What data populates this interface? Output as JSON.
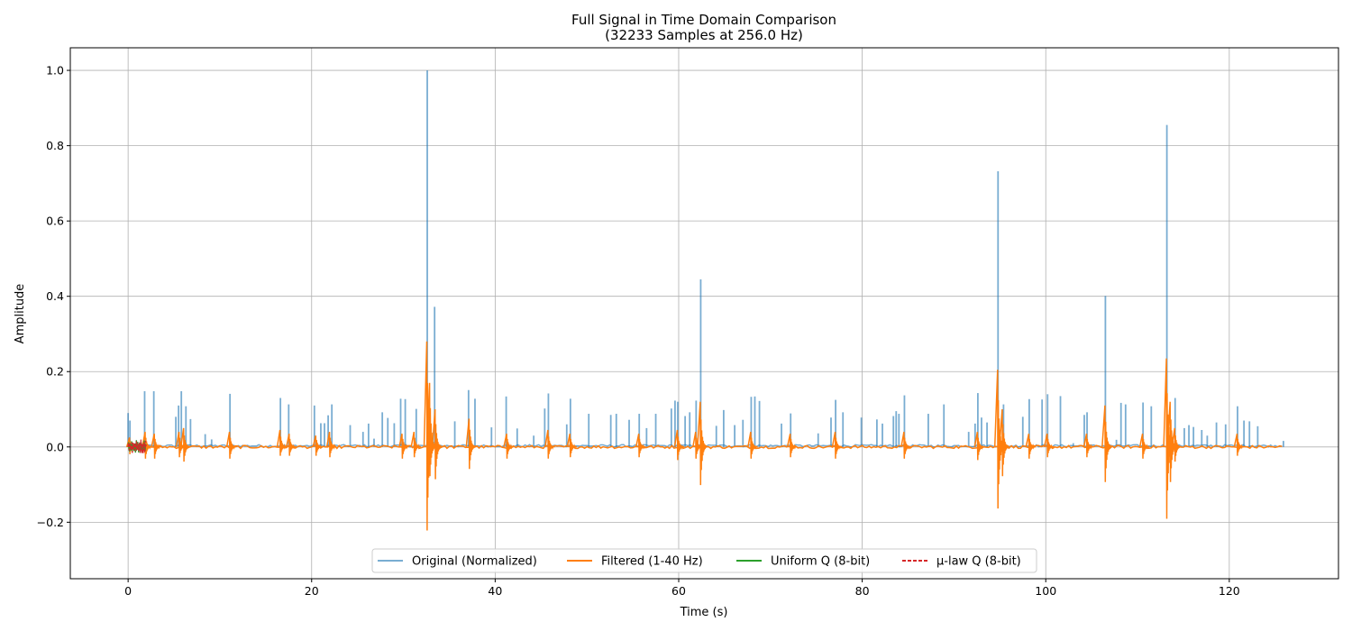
{
  "chart_data": {
    "type": "line",
    "title": "Full Signal in Time Domain Comparison",
    "subtitle": "(32233 Samples at 256.0 Hz)",
    "xlabel": "Time (s)",
    "ylabel": "Amplitude",
    "xlim": [
      -6.3,
      131.9
    ],
    "ylim": [
      -0.35,
      1.06
    ],
    "xticks": [
      0,
      20,
      40,
      60,
      80,
      100,
      120
    ],
    "xtick_labels": [
      "0",
      "20",
      "40",
      "60",
      "80",
      "100",
      "120"
    ],
    "yticks": [
      -0.2,
      0.0,
      0.2,
      0.4,
      0.6,
      0.8,
      1.0
    ],
    "ytick_labels": [
      "−0.2",
      "0.0",
      "0.2",
      "0.4",
      "0.6",
      "0.8",
      "1.0"
    ],
    "grid": true,
    "legend_position": "bottom-center",
    "duration_s": 125.9,
    "series": [
      {
        "name": "Original (Normalized)",
        "color": "#1f77b4",
        "style": "solid",
        "opacity": 0.6,
        "baseline": 0.0,
        "spikes": [
          [
            0.0,
            0.09
          ],
          [
            0.2,
            0.07
          ],
          [
            1.8,
            0.148
          ],
          [
            2.8,
            0.148
          ],
          [
            5.2,
            0.08
          ],
          [
            5.5,
            0.11
          ],
          [
            5.8,
            0.148
          ],
          [
            6.3,
            0.108
          ],
          [
            6.8,
            0.074
          ],
          [
            8.4,
            0.034
          ],
          [
            9.1,
            0.02
          ],
          [
            11.1,
            0.141
          ],
          [
            16.6,
            0.13
          ],
          [
            17.5,
            0.113
          ],
          [
            20.3,
            0.11
          ],
          [
            21.0,
            0.063
          ],
          [
            21.4,
            0.063
          ],
          [
            21.8,
            0.084
          ],
          [
            22.2,
            0.113
          ],
          [
            24.2,
            0.058
          ],
          [
            25.6,
            0.04
          ],
          [
            26.2,
            0.062
          ],
          [
            26.8,
            0.022
          ],
          [
            27.7,
            0.092
          ],
          [
            28.3,
            0.077
          ],
          [
            29.0,
            0.063
          ],
          [
            29.7,
            0.128
          ],
          [
            30.2,
            0.127
          ],
          [
            31.4,
            0.101
          ],
          [
            32.6,
            1.0
          ],
          [
            33.4,
            0.372
          ],
          [
            35.6,
            0.068
          ],
          [
            37.1,
            0.151
          ],
          [
            37.8,
            0.128
          ],
          [
            39.6,
            0.052
          ],
          [
            41.2,
            0.134
          ],
          [
            42.4,
            0.049
          ],
          [
            44.2,
            0.03
          ],
          [
            45.4,
            0.102
          ],
          [
            45.8,
            0.142
          ],
          [
            47.8,
            0.06
          ],
          [
            48.2,
            0.128
          ],
          [
            50.2,
            0.088
          ],
          [
            52.6,
            0.085
          ],
          [
            53.2,
            0.088
          ],
          [
            54.6,
            0.072
          ],
          [
            55.7,
            0.088
          ],
          [
            56.5,
            0.05
          ],
          [
            57.5,
            0.088
          ],
          [
            59.2,
            0.102
          ],
          [
            59.6,
            0.123
          ],
          [
            59.9,
            0.12
          ],
          [
            60.7,
            0.082
          ],
          [
            61.2,
            0.092
          ],
          [
            61.9,
            0.123
          ],
          [
            62.4,
            0.445
          ],
          [
            64.1,
            0.056
          ],
          [
            64.9,
            0.098
          ],
          [
            66.1,
            0.058
          ],
          [
            67.0,
            0.072
          ],
          [
            67.9,
            0.133
          ],
          [
            68.3,
            0.134
          ],
          [
            68.8,
            0.122
          ],
          [
            71.2,
            0.062
          ],
          [
            72.2,
            0.089
          ],
          [
            75.2,
            0.036
          ],
          [
            76.6,
            0.078
          ],
          [
            77.1,
            0.125
          ],
          [
            77.9,
            0.092
          ],
          [
            79.9,
            0.078
          ],
          [
            81.6,
            0.073
          ],
          [
            82.2,
            0.062
          ],
          [
            83.4,
            0.082
          ],
          [
            83.7,
            0.095
          ],
          [
            84.0,
            0.088
          ],
          [
            84.6,
            0.137
          ],
          [
            87.2,
            0.088
          ],
          [
            88.9,
            0.113
          ],
          [
            91.6,
            0.04
          ],
          [
            92.3,
            0.062
          ],
          [
            92.6,
            0.143
          ],
          [
            93.0,
            0.078
          ],
          [
            93.6,
            0.065
          ],
          [
            94.8,
            0.732
          ],
          [
            95.4,
            0.113
          ],
          [
            97.5,
            0.08
          ],
          [
            98.2,
            0.127
          ],
          [
            99.6,
            0.126
          ],
          [
            100.2,
            0.14
          ],
          [
            101.6,
            0.135
          ],
          [
            103.0,
            0.01
          ],
          [
            104.2,
            0.085
          ],
          [
            104.5,
            0.092
          ],
          [
            106.5,
            0.401
          ],
          [
            107.7,
            0.019
          ],
          [
            108.2,
            0.117
          ],
          [
            108.7,
            0.113
          ],
          [
            110.6,
            0.118
          ],
          [
            111.5,
            0.108
          ],
          [
            113.2,
            0.855
          ],
          [
            114.1,
            0.13
          ],
          [
            115.1,
            0.05
          ],
          [
            115.6,
            0.058
          ],
          [
            116.1,
            0.053
          ],
          [
            117.0,
            0.045
          ],
          [
            117.6,
            0.03
          ],
          [
            118.6,
            0.065
          ],
          [
            119.6,
            0.06
          ],
          [
            120.9,
            0.108
          ],
          [
            121.6,
            0.07
          ],
          [
            122.2,
            0.068
          ],
          [
            123.1,
            0.055
          ],
          [
            125.9,
            0.016
          ]
        ]
      },
      {
        "name": "Filtered (1-40 Hz)",
        "color": "#ff7f0e",
        "style": "solid",
        "opacity": 1.0,
        "baseline": 0.0,
        "bursts": [
          [
            0.2,
            0.025,
            -0.025
          ],
          [
            1.9,
            0.04,
            -0.04
          ],
          [
            2.9,
            0.035,
            -0.04
          ],
          [
            5.6,
            0.04,
            -0.035
          ],
          [
            6.1,
            0.05,
            -0.05
          ],
          [
            11.1,
            0.04,
            -0.04
          ],
          [
            16.6,
            0.045,
            -0.03
          ],
          [
            17.6,
            0.035,
            -0.03
          ],
          [
            20.5,
            0.03,
            -0.03
          ],
          [
            22.0,
            0.04,
            -0.035
          ],
          [
            29.9,
            0.035,
            -0.04
          ],
          [
            31.2,
            0.04,
            -0.035
          ],
          [
            32.6,
            0.28,
            -0.285
          ],
          [
            32.9,
            0.17,
            -0.1
          ],
          [
            33.5,
            0.1,
            -0.11
          ],
          [
            37.2,
            0.075,
            -0.075
          ],
          [
            41.3,
            0.035,
            -0.04
          ],
          [
            45.8,
            0.045,
            -0.04
          ],
          [
            48.2,
            0.035,
            -0.035
          ],
          [
            55.7,
            0.035,
            -0.035
          ],
          [
            59.9,
            0.045,
            -0.045
          ],
          [
            61.9,
            0.04,
            -0.04
          ],
          [
            62.4,
            0.12,
            -0.13
          ],
          [
            67.9,
            0.04,
            -0.04
          ],
          [
            72.2,
            0.035,
            -0.035
          ],
          [
            77.1,
            0.04,
            -0.04
          ],
          [
            84.6,
            0.04,
            -0.04
          ],
          [
            92.6,
            0.04,
            -0.045
          ],
          [
            94.8,
            0.205,
            -0.21
          ],
          [
            95.3,
            0.1,
            -0.1
          ],
          [
            98.2,
            0.035,
            -0.04
          ],
          [
            100.2,
            0.035,
            -0.035
          ],
          [
            104.5,
            0.035,
            -0.035
          ],
          [
            106.5,
            0.11,
            -0.12
          ],
          [
            110.6,
            0.035,
            -0.04
          ],
          [
            113.2,
            0.235,
            -0.245
          ],
          [
            113.6,
            0.12,
            -0.12
          ],
          [
            114.1,
            0.05,
            -0.05
          ],
          [
            120.9,
            0.035,
            -0.03
          ]
        ]
      },
      {
        "name": "Uniform Q (8-bit)",
        "color": "#2ca02c",
        "style": "solid",
        "opacity": 1.0,
        "x_range": [
          0.0,
          2.0
        ],
        "amplitude": 0.02
      },
      {
        "name": "μ-law Q (8-bit)",
        "color": "#d62728",
        "style": "dashed",
        "opacity": 1.0,
        "x_range": [
          0.0,
          2.0
        ],
        "amplitude": 0.02
      }
    ]
  }
}
